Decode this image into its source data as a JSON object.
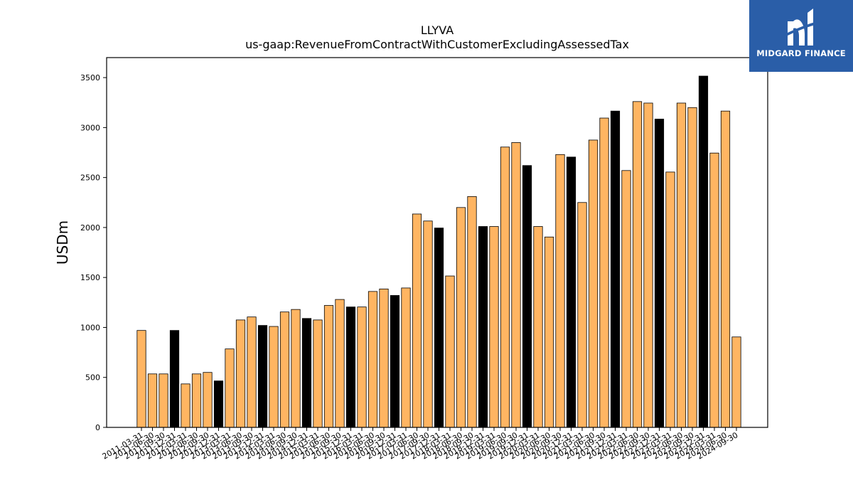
{
  "brand": {
    "name": "MIDGARD FINANCE",
    "bg_color": "#2a5ea8",
    "icon": "midgard-logo-icon"
  },
  "chart_data": {
    "type": "bar",
    "title": "LLYVA",
    "subtitle": "us-gaap:RevenueFromContractWithCustomerExcludingAssessedTax",
    "ylabel": "USDm",
    "xlabel": "",
    "ylim": [
      0,
      3700
    ],
    "yticks": [
      0,
      500,
      1000,
      1500,
      2000,
      2500,
      3000,
      3500
    ],
    "grid": false,
    "colors": {
      "regular": "#ffb562",
      "highlight": "#000000",
      "edge": "#000000"
    },
    "categories": [
      "2011-03-31",
      "2011-06-30",
      "2011-09-30",
      "2011-12-31",
      "2012-03-31",
      "2012-06-30",
      "2012-09-30",
      "2012-12-31",
      "2013-03-31",
      "2013-06-30",
      "2013-09-30",
      "2013-12-31",
      "2014-03-31",
      "2014-06-30",
      "2014-09-30",
      "2014-12-31",
      "2015-03-31",
      "2015-06-30",
      "2015-09-30",
      "2015-12-31",
      "2016-03-31",
      "2016-06-30",
      "2016-09-30",
      "2016-12-31",
      "2017-03-31",
      "2017-06-30",
      "2017-09-30",
      "2017-12-31",
      "2018-03-31",
      "2018-06-30",
      "2018-09-30",
      "2018-12-31",
      "2019-03-31",
      "2019-06-30",
      "2019-09-30",
      "2019-12-31",
      "2020-03-31",
      "2020-06-30",
      "2020-09-30",
      "2020-12-31",
      "2021-03-31",
      "2021-06-30",
      "2021-09-30",
      "2021-12-31",
      "2022-03-31",
      "2022-06-30",
      "2022-09-30",
      "2022-12-31",
      "2023-03-31",
      "2023-06-30",
      "2023-09-30",
      "2023-12-31",
      "2024-03-31",
      "2024-06-30",
      "2024-09-30"
    ],
    "values": [
      970,
      535,
      535,
      970,
      435,
      535,
      550,
      465,
      785,
      1075,
      1105,
      1020,
      1010,
      1155,
      1180,
      1090,
      1075,
      1220,
      1280,
      1205,
      1205,
      1360,
      1385,
      1320,
      1395,
      2135,
      2065,
      1995,
      1515,
      2200,
      2310,
      2010,
      2010,
      2805,
      2850,
      2620,
      2010,
      1905,
      2730,
      2705,
      2250,
      2875,
      3095,
      3165,
      2570,
      3260,
      3245,
      3085,
      2555,
      3245,
      3200,
      3515,
      2745,
      3165,
      905
    ],
    "highlight_quarter": "12-31"
  }
}
